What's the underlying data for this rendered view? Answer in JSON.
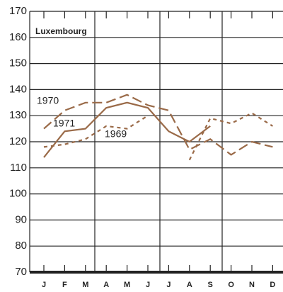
{
  "chart_data": {
    "type": "line",
    "title": "Luxembourg",
    "categories": [
      "J",
      "F",
      "M",
      "A",
      "M",
      "J",
      "J",
      "A",
      "S",
      "O",
      "N",
      "D"
    ],
    "series": [
      {
        "name": "1970",
        "color": "#9a6a48",
        "dash": "14 6",
        "values": [
          125,
          132,
          135,
          135,
          138,
          134,
          132,
          117,
          121,
          115,
          120,
          118
        ]
      },
      {
        "name": "1971",
        "color": "#9a6a48",
        "dash": "none",
        "values": [
          114,
          124,
          125,
          133,
          135,
          133,
          124,
          120,
          126,
          null,
          null,
          null
        ]
      },
      {
        "name": "1969",
        "color": "#9a6a48",
        "dash": "5 5",
        "values": [
          118,
          119,
          121,
          126,
          125,
          130,
          null,
          113,
          129,
          127,
          131,
          126
        ]
      }
    ],
    "ylim": [
      70,
      170
    ],
    "yticks": [
      70,
      80,
      90,
      100,
      110,
      120,
      130,
      140,
      150,
      160,
      170
    ],
    "grid": true
  }
}
